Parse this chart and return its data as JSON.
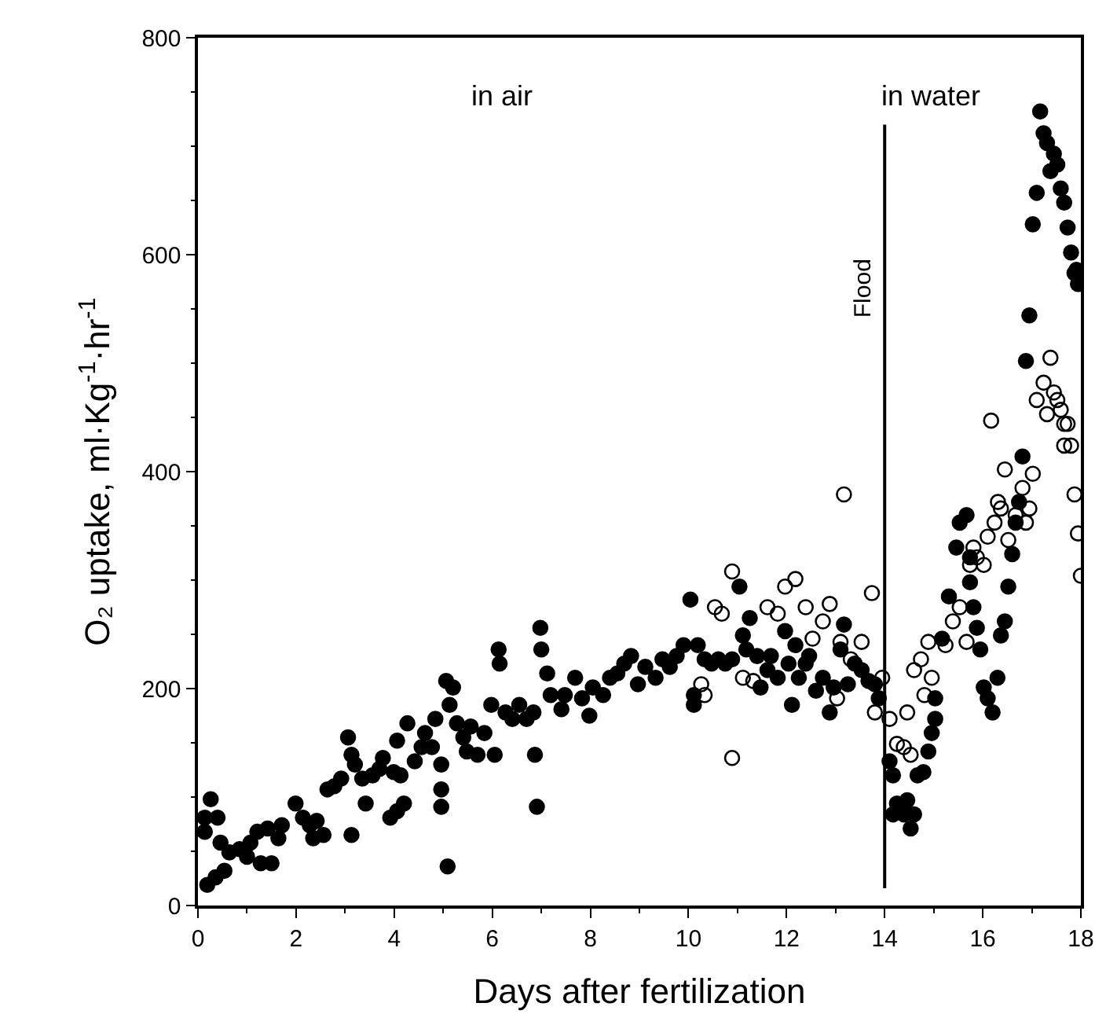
{
  "chart_data": {
    "type": "scatter",
    "xlabel": "Days after fertilization",
    "ylabel": "O₂ uptake, ml·Kg$^{-1}$·hr$^{-1}$",
    "xlim": [
      0,
      18
    ],
    "xticks": [
      0,
      2,
      4,
      6,
      8,
      10,
      12,
      14,
      16,
      18
    ],
    "ylim": [
      0,
      800
    ],
    "yticks": [
      0,
      200,
      400,
      600,
      800
    ],
    "grid": false,
    "marker": "circle",
    "annotations": [
      "in air",
      "in water"
    ],
    "ref_lines": [
      {
        "axis": "x",
        "value": 14,
        "label": "Flood",
        "color": "#000000",
        "line_style": "solid"
      }
    ],
    "series": [
      {
        "color": "#000000",
        "x": [
          0.14,
          0.26,
          0.14,
          0.4,
          0.19,
          0.36,
          0.54,
          0.46,
          0.64,
          0.85,
          1.07,
          1.0,
          1.28,
          1.5,
          1.21,
          1.42,
          1.64,
          1.71,
          1.99,
          2.14,
          2.28,
          2.42,
          2.35,
          2.56,
          2.64,
          2.78,
          2.92,
          3.06,
          3.13,
          3.13,
          3.2,
          3.35,
          3.42,
          3.56,
          3.7,
          3.77,
          3.92,
          3.99,
          4.06,
          4.06,
          4.2,
          4.13,
          4.27,
          4.42,
          4.56,
          4.63,
          4.77,
          4.84,
          4.96,
          4.96,
          4.96,
          5.06,
          5.2,
          5.13,
          5.09,
          5.28,
          5.41,
          5.48,
          5.56,
          5.7,
          5.84,
          5.98,
          6.05,
          6.13,
          6.15,
          6.27,
          6.41,
          6.55,
          6.7,
          6.84,
          6.98,
          7.0,
          6.87,
          6.91,
          7.12,
          7.19,
          7.41,
          7.48,
          7.69,
          7.83,
          7.98,
          8.05,
          8.26,
          8.4,
          8.55,
          8.69,
          8.83,
          8.97,
          9.12,
          9.33,
          9.47,
          9.62,
          9.76,
          9.9,
          10.04,
          10.11,
          10.11,
          10.19,
          10.33,
          10.47,
          10.61,
          10.75,
          10.89,
          11.04,
          11.11,
          11.18,
          11.25,
          11.4,
          11.47,
          11.61,
          11.68,
          11.82,
          11.97,
          12.04,
          12.11,
          12.18,
          12.25,
          12.39,
          12.46,
          12.6,
          12.74,
          12.88,
          12.96,
          13.1,
          13.17,
          13.25,
          13.39,
          13.53,
          13.67,
          13.8,
          13.88,
          14.1,
          14.17,
          14.25,
          14.17,
          14.39,
          14.46,
          14.53,
          14.6,
          14.67,
          14.79,
          14.89,
          14.96,
          15.03,
          15.03,
          15.17,
          15.31,
          15.46,
          15.53,
          15.67,
          15.74,
          15.74,
          15.81,
          15.88,
          15.95,
          16.02,
          16.1,
          16.2,
          16.3,
          16.37,
          16.45,
          16.52,
          16.6,
          16.67,
          16.74,
          16.81,
          16.88,
          16.95,
          17.02,
          17.1,
          17.17,
          17.24,
          17.31,
          17.38,
          17.45,
          17.52,
          17.59,
          17.66,
          17.73,
          17.8,
          17.87,
          17.94,
          17.91
        ],
        "values": [
          81,
          98,
          68,
          81,
          19,
          26,
          32,
          58,
          49,
          52,
          58,
          45,
          39,
          39,
          68,
          71,
          62,
          74,
          94,
          81,
          74,
          78,
          62,
          65,
          107,
          110,
          117,
          155,
          139,
          65,
          130,
          117,
          94,
          120,
          126,
          136,
          81,
          123,
          152,
          87,
          94,
          120,
          168,
          133,
          146,
          159,
          146,
          172,
          130,
          107,
          91,
          207,
          201,
          185,
          36,
          168,
          155,
          142,
          165,
          139,
          159,
          185,
          139,
          236,
          223,
          178,
          172,
          185,
          172,
          178,
          256,
          236,
          139,
          91,
          214,
          194,
          181,
          194,
          210,
          191,
          175,
          201,
          194,
          210,
          214,
          223,
          230,
          204,
          220,
          210,
          227,
          220,
          230,
          240,
          282,
          194,
          185,
          240,
          227,
          223,
          227,
          223,
          227,
          294,
          249,
          236,
          265,
          230,
          201,
          217,
          230,
          210,
          253,
          223,
          185,
          240,
          210,
          223,
          230,
          198,
          210,
          178,
          201,
          236,
          259,
          204,
          223,
          217,
          207,
          204,
          191,
          133,
          120,
          94,
          84,
          84,
          97,
          71,
          84,
          120,
          123,
          142,
          159,
          172,
          191,
          246,
          285,
          330,
          353,
          360,
          321,
          298,
          275,
          256,
          236,
          201,
          191,
          178,
          210,
          249,
          262,
          294,
          324,
          353,
          372,
          414,
          502,
          544,
          628,
          657,
          732,
          712,
          703,
          677,
          693,
          683,
          661,
          648,
          625,
          602,
          583,
          573,
          586
        ]
      },
      {
        "color": "#000000",
        "marker": "circle-open",
        "x": [
          10.89,
          13.17,
          10.26,
          10.33,
          10.54,
          10.68,
          10.89,
          11.11,
          11.32,
          11.61,
          11.82,
          11.97,
          12.18,
          12.39,
          12.53,
          12.74,
          12.88,
          13.03,
          13.1,
          13.31,
          13.53,
          13.74,
          13.8,
          13.95,
          14.1,
          14.25,
          14.39,
          14.53,
          14.46,
          14.6,
          14.74,
          14.81,
          14.89,
          14.96,
          15.24,
          15.39,
          15.53,
          15.67,
          15.74,
          15.81,
          15.88,
          16.02,
          16.1,
          16.17,
          16.24,
          16.31,
          16.37,
          16.45,
          16.52,
          16.67,
          16.81,
          16.88,
          16.95,
          17.02,
          17.1,
          17.24,
          17.38,
          17.31,
          17.45,
          17.52,
          17.59,
          17.66,
          17.73,
          17.8,
          17.66,
          17.87,
          17.94,
          18.0
        ],
        "values": [
          136,
          379,
          204,
          194,
          275,
          269,
          308,
          210,
          207,
          275,
          269,
          294,
          301,
          275,
          246,
          262,
          278,
          191,
          243,
          227,
          243,
          288,
          178,
          210,
          172,
          149,
          146,
          139,
          178,
          217,
          227,
          194,
          243,
          210,
          240,
          262,
          275,
          243,
          314,
          330,
          321,
          314,
          340,
          447,
          353,
          372,
          366,
          402,
          337,
          360,
          385,
          353,
          366,
          398,
          466,
          482,
          505,
          453,
          473,
          466,
          457,
          444,
          444,
          424,
          424,
          379,
          343,
          304
        ]
      }
    ]
  }
}
